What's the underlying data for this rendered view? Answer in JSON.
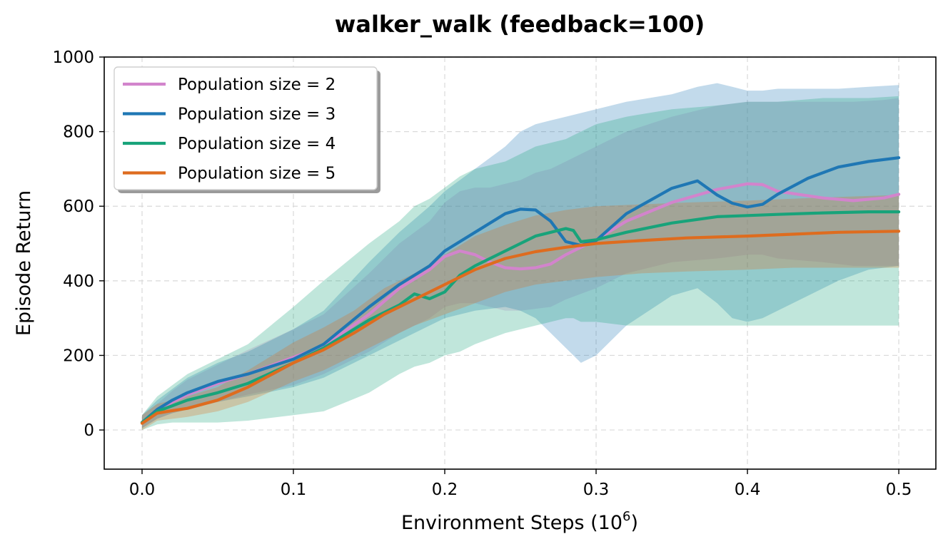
{
  "chart_data": {
    "type": "line",
    "title": "walker_walk (feedback=100)",
    "xlabel": "Environment Steps (10",
    "xlabel_superscript": "6",
    "xlabel_suffix": ")",
    "ylabel": "Episode Return",
    "xlim": [
      -0.025,
      0.5245
    ],
    "ylim": [
      -105,
      1000
    ],
    "grid": true,
    "legend_position": "top-left",
    "x_ticks": [
      0.0,
      0.1,
      0.2,
      0.3,
      0.4,
      0.5
    ],
    "x_tick_labels": [
      "0.0",
      "0.1",
      "0.2",
      "0.3",
      "0.4",
      "0.5"
    ],
    "y_ticks": [
      0,
      200,
      400,
      600,
      800,
      1000
    ],
    "y_tick_labels": [
      "0",
      "200",
      "400",
      "600",
      "800",
      "1000"
    ],
    "series": [
      {
        "name": "Population size = 2",
        "color": "#d284cc",
        "x": [
          0,
          0.01,
          0.02,
          0.03,
          0.05,
          0.07,
          0.1,
          0.12,
          0.15,
          0.17,
          0.19,
          0.2,
          0.21,
          0.22,
          0.23,
          0.24,
          0.25,
          0.26,
          0.27,
          0.28,
          0.3,
          0.32,
          0.35,
          0.38,
          0.4,
          0.41,
          0.42,
          0.45,
          0.47,
          0.49,
          0.5
        ],
        "values": [
          20,
          50,
          75,
          95,
          125,
          150,
          195,
          225,
          310,
          380,
          430,
          465,
          480,
          470,
          450,
          435,
          432,
          435,
          445,
          470,
          510,
          560,
          610,
          645,
          660,
          658,
          640,
          622,
          615,
          622,
          632
        ],
        "lower": [
          5,
          30,
          45,
          55,
          75,
          95,
          120,
          150,
          210,
          260,
          300,
          330,
          340,
          340,
          330,
          320,
          320,
          325,
          330,
          350,
          380,
          420,
          450,
          460,
          470,
          470,
          460,
          450,
          440,
          440,
          440
        ],
        "upper": [
          40,
          70,
          105,
          135,
          175,
          215,
          270,
          310,
          420,
          500,
          560,
          610,
          640,
          650,
          650,
          660,
          670,
          690,
          700,
          720,
          760,
          800,
          840,
          870,
          880,
          880,
          880,
          880,
          880,
          885,
          890
        ]
      },
      {
        "name": "Population size = 3",
        "color": "#1f77b4",
        "x": [
          0,
          0.01,
          0.02,
          0.03,
          0.05,
          0.07,
          0.1,
          0.12,
          0.15,
          0.17,
          0.19,
          0.2,
          0.22,
          0.24,
          0.25,
          0.26,
          0.27,
          0.28,
          0.29,
          0.3,
          0.32,
          0.35,
          0.367,
          0.38,
          0.39,
          0.4,
          0.41,
          0.42,
          0.44,
          0.46,
          0.48,
          0.5
        ],
        "values": [
          20,
          55,
          80,
          100,
          130,
          150,
          190,
          230,
          330,
          390,
          440,
          480,
          530,
          580,
          592,
          590,
          560,
          505,
          495,
          508,
          580,
          648,
          668,
          630,
          608,
          598,
          605,
          632,
          675,
          705,
          720,
          730
        ],
        "lower": [
          5,
          30,
          45,
          55,
          75,
          90,
          115,
          140,
          200,
          240,
          280,
          300,
          320,
          330,
          320,
          300,
          260,
          220,
          180,
          200,
          280,
          360,
          380,
          340,
          300,
          290,
          300,
          320,
          360,
          400,
          430,
          440
        ],
        "upper": [
          40,
          80,
          110,
          140,
          180,
          210,
          270,
          320,
          450,
          530,
          600,
          640,
          700,
          760,
          800,
          820,
          830,
          840,
          850,
          860,
          880,
          900,
          920,
          930,
          920,
          910,
          910,
          915,
          915,
          915,
          920,
          925
        ]
      },
      {
        "name": "Population size = 4",
        "color": "#18a37a",
        "x": [
          0,
          0.01,
          0.02,
          0.03,
          0.05,
          0.07,
          0.1,
          0.12,
          0.15,
          0.17,
          0.18,
          0.19,
          0.2,
          0.21,
          0.22,
          0.24,
          0.26,
          0.28,
          0.285,
          0.29,
          0.3,
          0.32,
          0.35,
          0.38,
          0.4,
          0.42,
          0.45,
          0.48,
          0.5
        ],
        "values": [
          20,
          50,
          65,
          80,
          100,
          125,
          180,
          220,
          295,
          335,
          365,
          352,
          370,
          415,
          440,
          480,
          520,
          540,
          535,
          505,
          510,
          530,
          555,
          572,
          575,
          578,
          582,
          585,
          585
        ],
        "lower": [
          0,
          15,
          20,
          20,
          20,
          25,
          40,
          50,
          100,
          150,
          170,
          180,
          200,
          210,
          230,
          260,
          280,
          300,
          300,
          290,
          290,
          280,
          280,
          280,
          280,
          280,
          280,
          280,
          280
        ],
        "upper": [
          40,
          90,
          120,
          150,
          190,
          230,
          330,
          400,
          500,
          560,
          600,
          620,
          650,
          680,
          700,
          720,
          760,
          780,
          790,
          800,
          820,
          840,
          860,
          870,
          880,
          880,
          890,
          890,
          895
        ]
      },
      {
        "name": "Population size = 5",
        "color": "#de6c1f",
        "x": [
          0,
          0.01,
          0.02,
          0.03,
          0.05,
          0.07,
          0.1,
          0.12,
          0.14,
          0.16,
          0.18,
          0.2,
          0.22,
          0.24,
          0.26,
          0.28,
          0.3,
          0.33,
          0.36,
          0.4,
          0.43,
          0.46,
          0.5
        ],
        "values": [
          18,
          45,
          52,
          58,
          80,
          115,
          180,
          215,
          260,
          310,
          350,
          390,
          430,
          460,
          478,
          490,
          500,
          508,
          515,
          520,
          525,
          530,
          533
        ],
        "lower": [
          0,
          25,
          30,
          35,
          50,
          75,
          130,
          160,
          200,
          240,
          280,
          310,
          340,
          370,
          390,
          400,
          410,
          420,
          425,
          430,
          435,
          435,
          435
        ],
        "upper": [
          40,
          70,
          80,
          90,
          115,
          160,
          235,
          275,
          320,
          380,
          420,
          470,
          520,
          550,
          575,
          590,
          600,
          605,
          610,
          615,
          620,
          625,
          630
        ]
      }
    ]
  }
}
